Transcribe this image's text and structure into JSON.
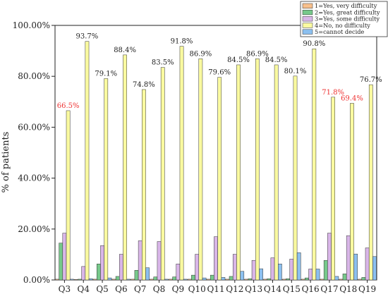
{
  "chart_data": {
    "type": "bar",
    "xlabel": "",
    "ylabel": "% of patients",
    "ylim": [
      0,
      100
    ],
    "yticks": [
      0,
      20,
      40,
      60,
      80,
      100
    ],
    "ytick_labels": [
      "0.00%",
      "20.00%",
      "40.00%",
      "60.00%",
      "80.00%",
      "100.00%"
    ],
    "grid": false,
    "legend_position": "top-right",
    "categories": [
      "Q3",
      "Q4",
      "Q5",
      "Q6",
      "Q7",
      "Q8",
      "Q9",
      "Q10",
      "Q11",
      "Q12",
      "Q13",
      "Q14",
      "Q15",
      "Q16",
      "Q17",
      "Q18",
      "Q19"
    ],
    "series": [
      {
        "name": "1=Yes, very difficulty",
        "color": "#f8c08c",
        "values": [
          0.3,
          0.2,
          0.3,
          0.3,
          0.3,
          0.3,
          0.3,
          0.3,
          0.3,
          0.3,
          0.3,
          0.3,
          0.3,
          0.3,
          0.3,
          0.3,
          0.3
        ]
      },
      {
        "name": "2=Yes, great difficulty",
        "color": "#77c98b",
        "values": [
          14.5,
          0.3,
          6.3,
          1.4,
          3.8,
          1.2,
          1.2,
          1.9,
          1.9,
          1.4,
          0.5,
          0.5,
          0.5,
          0.8,
          7.7,
          2.4,
          1.0
        ]
      },
      {
        "name": "3=Yes, some difficulty",
        "color": "#d9b6e8",
        "values": [
          18.4,
          5.3,
          13.5,
          10.1,
          15.4,
          15.1,
          6.3,
          10.1,
          17.0,
          10.1,
          7.7,
          8.7,
          8.2,
          4.3,
          18.4,
          17.4,
          12.6
        ]
      },
      {
        "name": "4=No, no difficulty",
        "color": "#fafaa0",
        "values": [
          66.5,
          93.7,
          79.1,
          88.4,
          74.8,
          83.5,
          91.8,
          86.9,
          79.6,
          84.5,
          86.9,
          84.5,
          80.1,
          90.8,
          71.8,
          69.4,
          76.7
        ]
      },
      {
        "name": "5=cannot decide",
        "color": "#8cc0f0",
        "values": [
          0.3,
          0.5,
          0.8,
          0.3,
          4.8,
          0.3,
          0.3,
          0.8,
          1.0,
          3.4,
          4.4,
          6.3,
          10.7,
          4.3,
          1.4,
          10.2,
          9.2
        ]
      }
    ],
    "value_labels": {
      "series_index": 3,
      "labels": [
        "66.5%",
        "93.7%",
        "79.1%",
        "88.4%",
        "74.8%",
        "83.5%",
        "91.8%",
        "86.9%",
        "79.6%",
        "84.5%",
        "86.9%",
        "84.5%",
        "80.1%",
        "90.8%",
        "71.8%",
        "69.4%",
        "76.7%"
      ],
      "highlight_color": "#ee3333",
      "normal_color": "#222222",
      "highlighted": [
        "Q3",
        "Q17",
        "Q18"
      ]
    }
  }
}
